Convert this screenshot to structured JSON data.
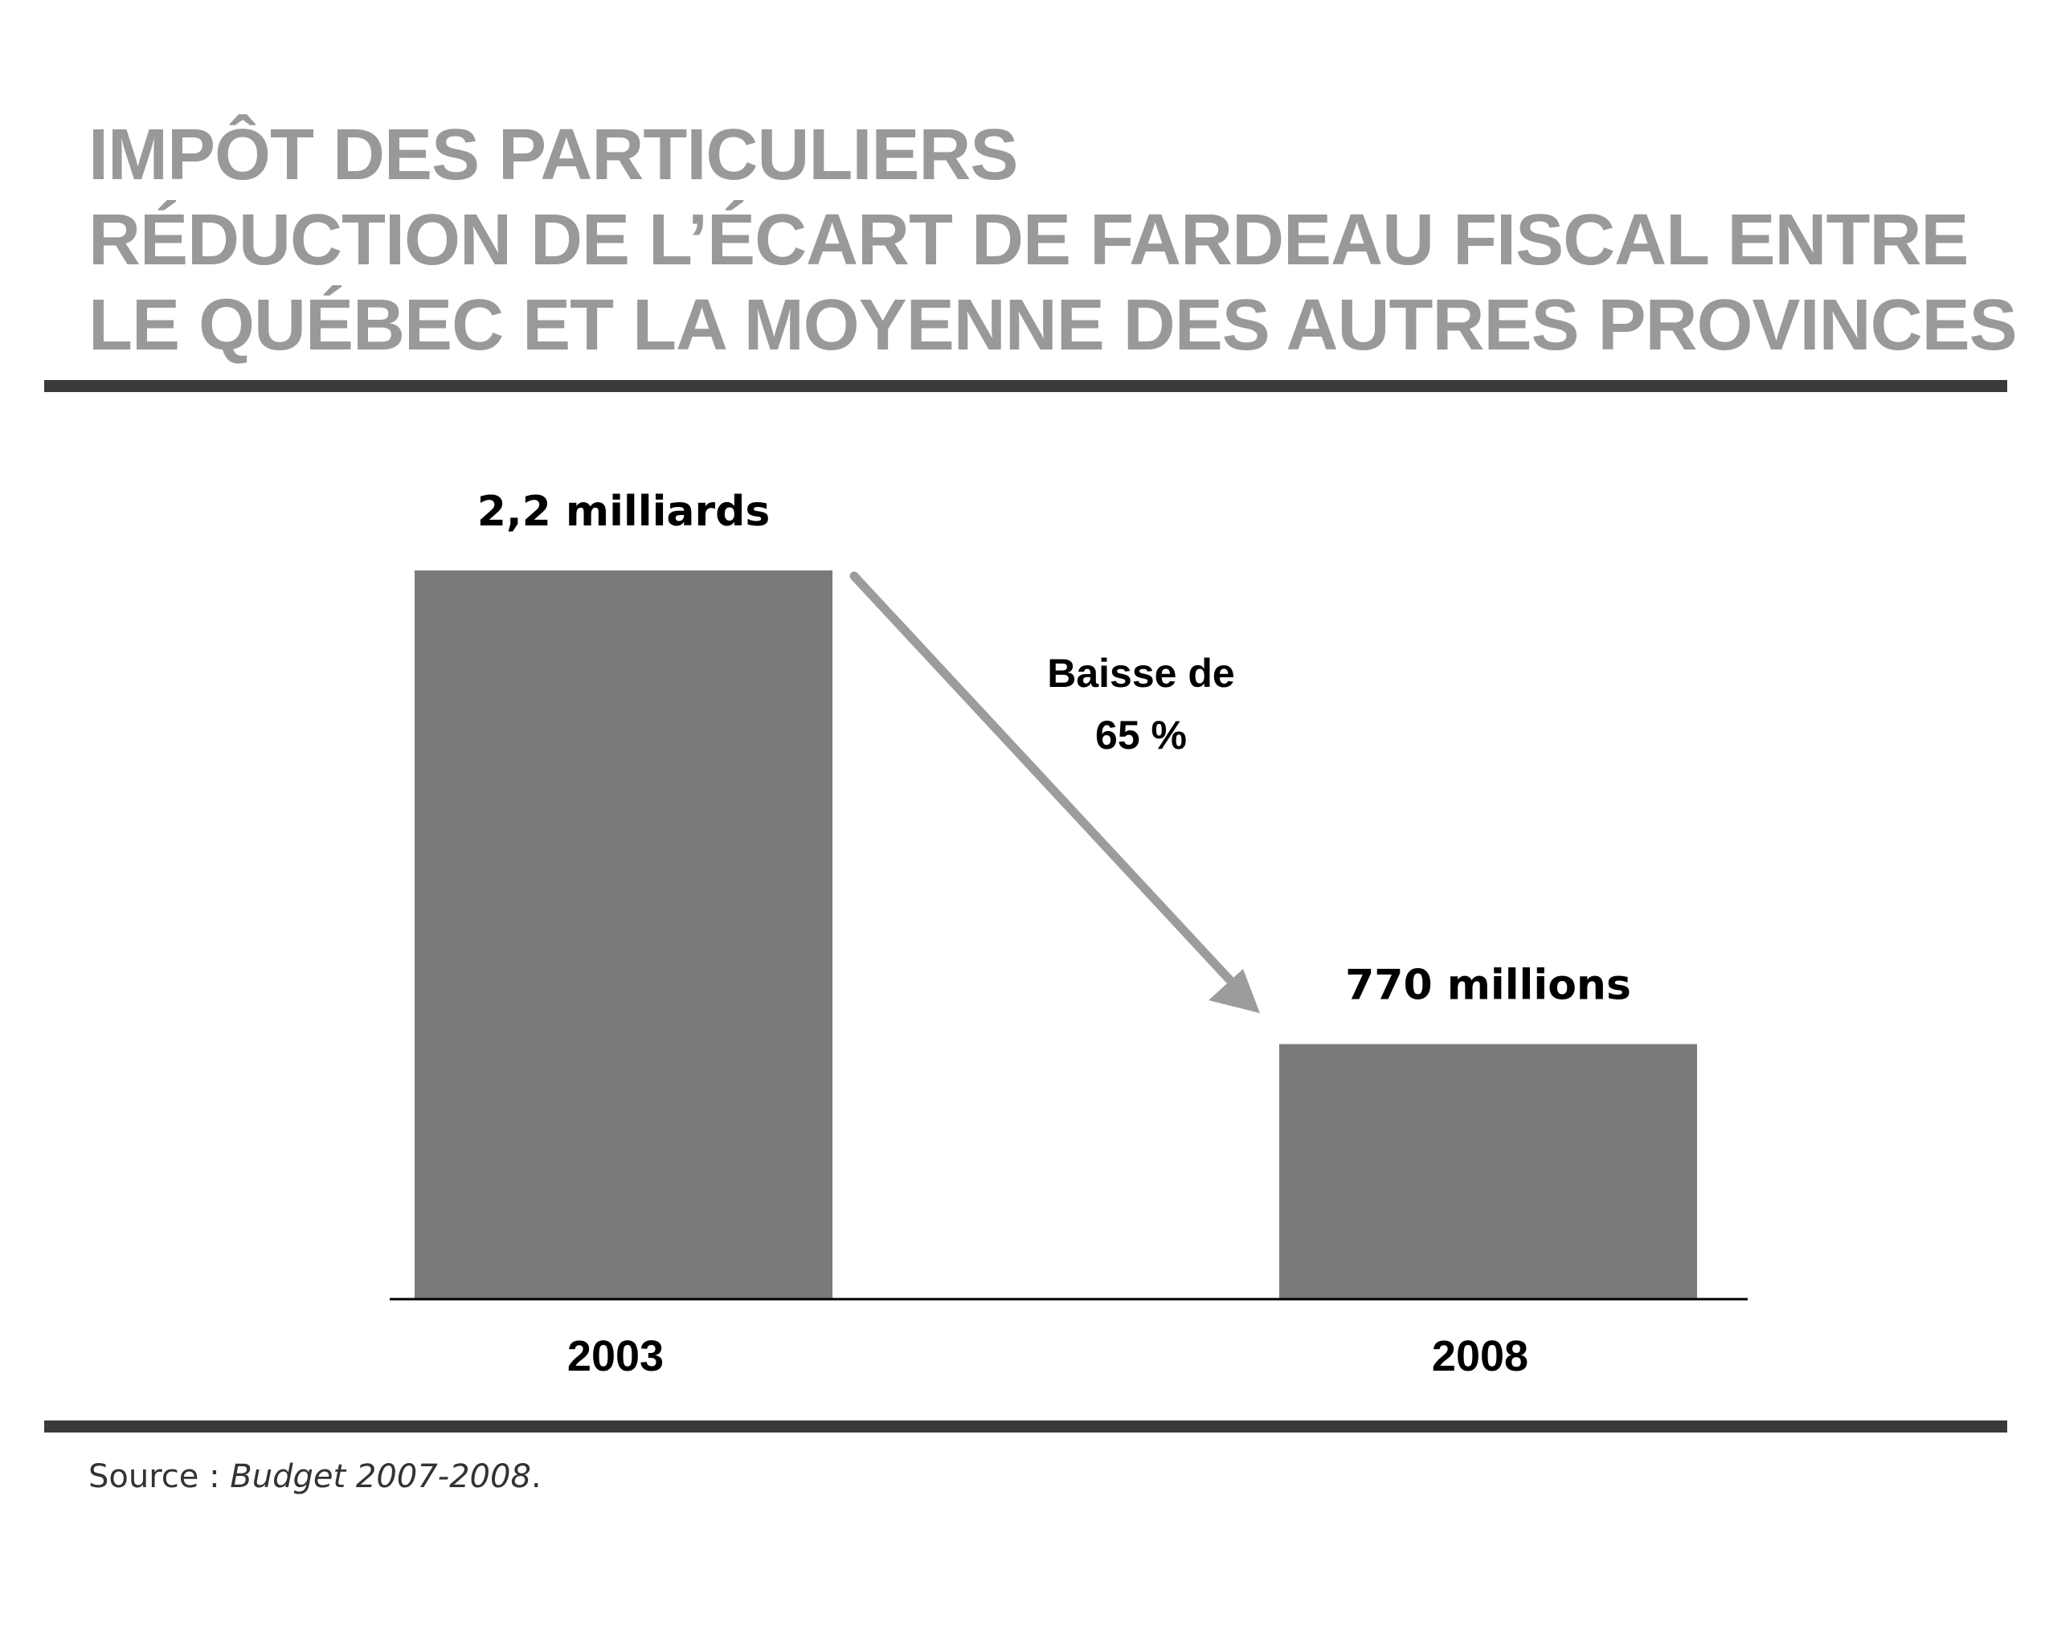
{
  "titles": {
    "line1": "IMPÔT DES PARTICULIERS",
    "line2": "RÉDUCTION DE L’ÉCART DE FARDEAU FISCAL ENTRE",
    "line3": "LE QUÉBEC ET LA MOYENNE DES AUTRES PROVINCES"
  },
  "source": {
    "label": "Source : ",
    "text": "Budget 2007-2008",
    "suffix": "."
  },
  "annotation": {
    "line1": "Baisse de",
    "line2": "65 %"
  },
  "colors": {
    "title": "#999999",
    "bar": "#7a7a7a",
    "arrow": "#9c9c9c",
    "rule": "#3a3a3a",
    "label": "#000000"
  },
  "chart_data": {
    "type": "bar",
    "categories": [
      "2003",
      "2008"
    ],
    "values": [
      2.2,
      0.77
    ],
    "value_labels": [
      "2,2 milliards",
      "770 millions"
    ],
    "ylim": [
      0,
      2.2
    ],
    "grid": false,
    "legend": "none",
    "xlabel": "",
    "ylabel": ""
  }
}
